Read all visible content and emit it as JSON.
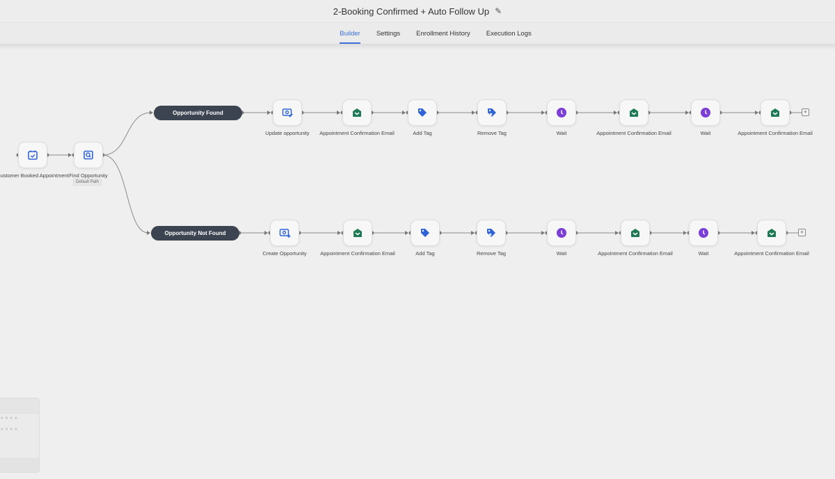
{
  "header": {
    "title": "2-Booking Confirmed + Auto Follow Up",
    "edit_icon": "pencil-icon"
  },
  "tabs": [
    {
      "label": "Builder",
      "active": true
    },
    {
      "label": "Settings"
    },
    {
      "label": "Enrollment History"
    },
    {
      "label": "Execution Logs"
    }
  ],
  "colors": {
    "accent": "#3b6fd8",
    "blue_icon": "#2f63d6",
    "green_icon": "#1e7a55",
    "purple_icon": "#7b3fd6",
    "pill": "#3d4451"
  },
  "workflow": {
    "trigger": {
      "label": "Customer Booked Appointment",
      "icon": "calendar-check-icon"
    },
    "find": {
      "label": "Find Opportunity",
      "badge": "Default Path",
      "icon": "search-icon"
    },
    "branches": [
      {
        "label": "Opportunity Found",
        "steps": [
          {
            "label": "Update opportunity",
            "icon": "update-opportunity-icon"
          },
          {
            "label": "Appointment Confirmation Email",
            "icon": "email-icon"
          },
          {
            "label": "Add Tag",
            "icon": "tag-icon"
          },
          {
            "label": "Remove Tag",
            "icon": "remove-tag-icon"
          },
          {
            "label": "Wait",
            "icon": "clock-icon"
          },
          {
            "label": "Appointment Confirmation Email",
            "icon": "email-icon"
          },
          {
            "label": "Wait",
            "icon": "clock-icon"
          },
          {
            "label": "Appointment Confirmation Email",
            "icon": "email-icon"
          }
        ]
      },
      {
        "label": "Opportunity Not Found",
        "steps": [
          {
            "label": "Create Opportunity",
            "icon": "create-opportunity-icon"
          },
          {
            "label": "Appointment Confirmation Email",
            "icon": "email-icon"
          },
          {
            "label": "Add Tag",
            "icon": "tag-icon"
          },
          {
            "label": "Remove Tag",
            "icon": "remove-tag-icon"
          },
          {
            "label": "Wait",
            "icon": "clock-icon"
          },
          {
            "label": "Appointment Confirmation Email",
            "icon": "email-icon"
          },
          {
            "label": "Wait",
            "icon": "clock-icon"
          },
          {
            "label": "Appointment Confirmation Email",
            "icon": "email-icon"
          }
        ]
      }
    ]
  }
}
